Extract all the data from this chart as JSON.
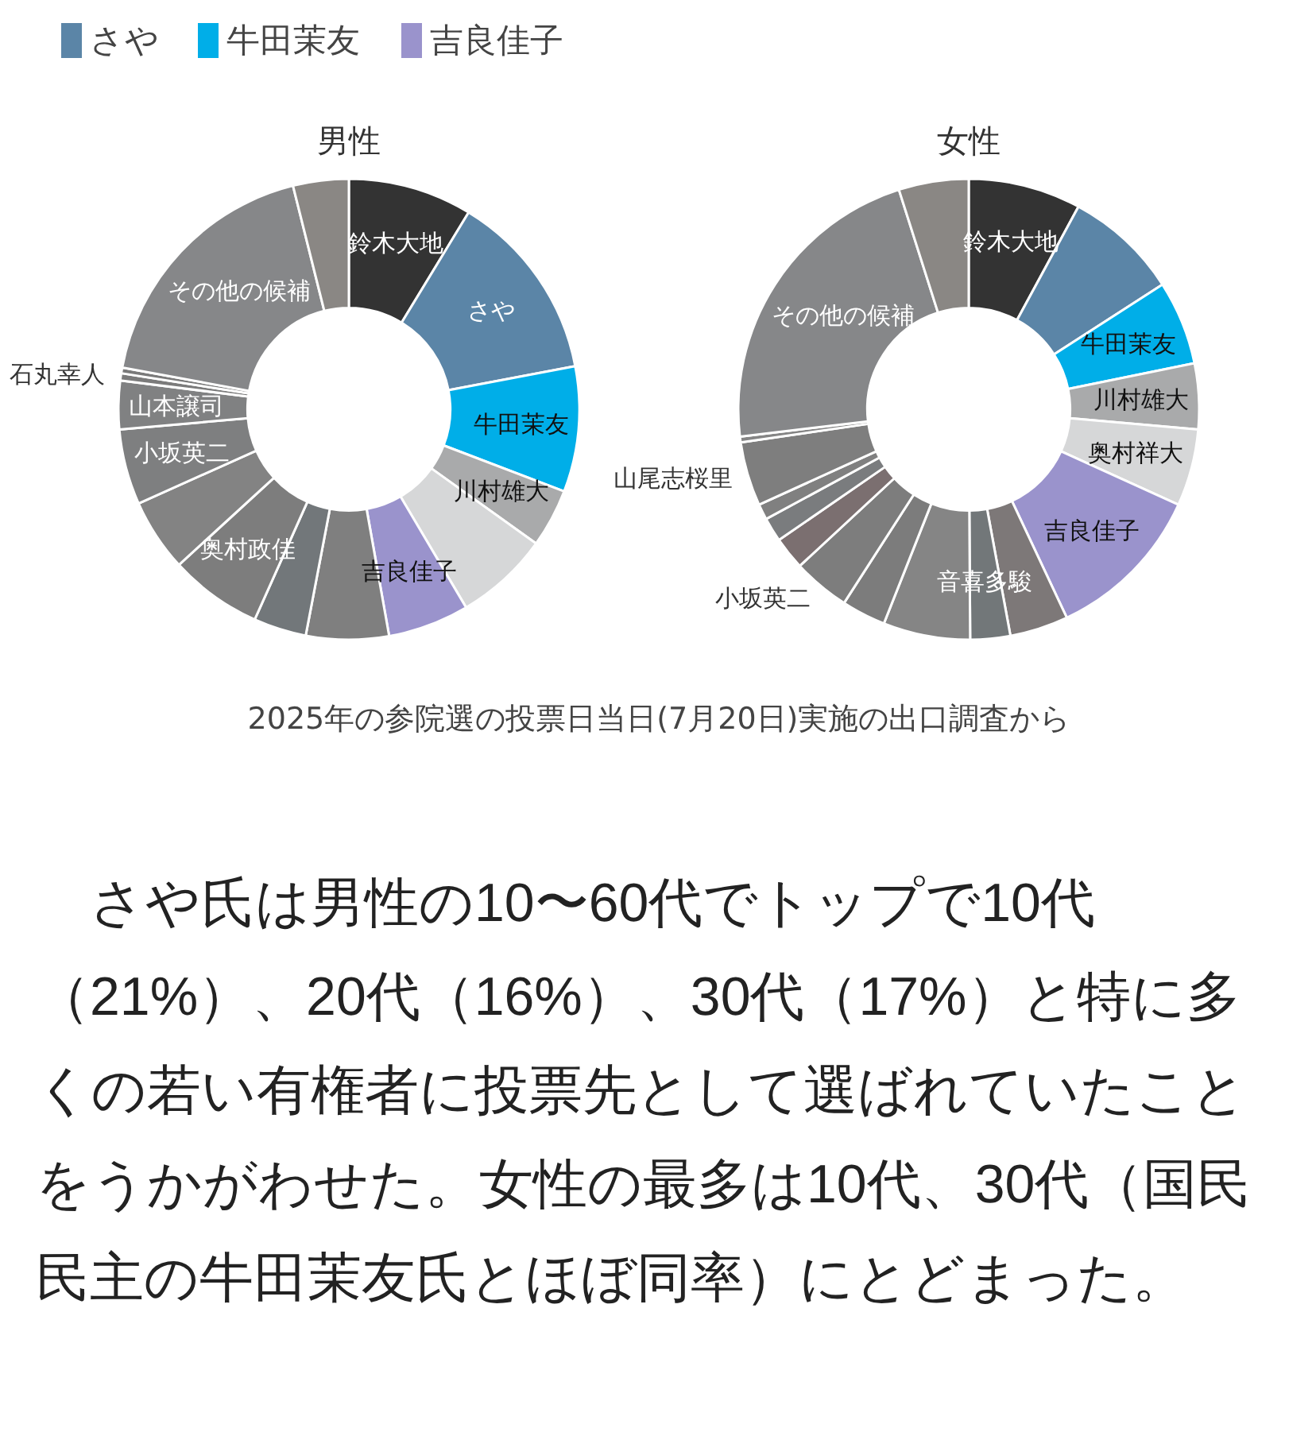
{
  "chart_data": [
    {
      "type": "donut",
      "title": "男性",
      "legend": "top left",
      "categories": [
        "鈴木大地",
        "さや",
        "牛田茉友",
        "川村雄大",
        null,
        "吉良佳子",
        null,
        null,
        "奥村政佳",
        null,
        "小坂英二",
        "山本譲司",
        "石丸幸人",
        null,
        "その他の候補",
        null
      ],
      "values": [
        8.7,
        13.3,
        8.8,
        4.1,
        6.6,
        5.7,
        5.8,
        3.7,
        6.5,
        5.1,
        5.3,
        3.4,
        0.5,
        0.4,
        18.2,
        3.9
      ],
      "colors": [
        "#333333",
        "#5b85a7",
        "#00aee8",
        "#a9aaab",
        "#d6d7d8",
        "#9a93cc",
        "#7f7f7f",
        "#72777a",
        "#7d7d7d",
        "#838383",
        "#7e7f80",
        "#808182",
        "#7b7b7b",
        "#7a7a7a",
        "#868789",
        "#8a8784"
      ]
    },
    {
      "type": "donut",
      "title": "女性",
      "categories": [
        "鈴木大地",
        null,
        "牛田茉友",
        "川村雄大",
        "奥村祥大",
        "吉良佳子",
        null,
        "音喜多駿",
        null,
        null,
        "小坂英二",
        null,
        null,
        null,
        "山尾志桜里",
        null,
        "その他の候補",
        null
      ],
      "values": [
        7.9,
        8.0,
        5.9,
        4.6,
        5.4,
        11.2,
        4.1,
        2.8,
        6.1,
        3.1,
        4.0,
        2.3,
        1.7,
        1.1,
        4.5,
        0.4,
        22.0,
        4.9
      ],
      "colors": [
        "#333333",
        "#5b85a7",
        "#00aee8",
        "#a9aaab",
        "#d6d7d8",
        "#9a93cc",
        "#7d7878",
        "#727779",
        "#858585",
        "#7c7c7c",
        "#7d7d7d",
        "#7b6f70",
        "#7a7c7e",
        "#808080",
        "#7e7e7e",
        "#858585",
        "#868789",
        "#8a8784"
      ]
    },
    {
      "type": "other",
      "annotations": [
        "2025年の参院選の投票日当日(7月20日)実施の出口調査から",
        "　さや氏は男性の10〜60代でトップで10代（21%）、20代（16%）、30代（17%）と特に多くの若い有権者に投票先として選ばれていたことをうかがわせた。女性の最多は10代、30代（国民民主の牛田茉友氏とほぼ同率）にとどまった。"
      ]
    }
  ]
}
